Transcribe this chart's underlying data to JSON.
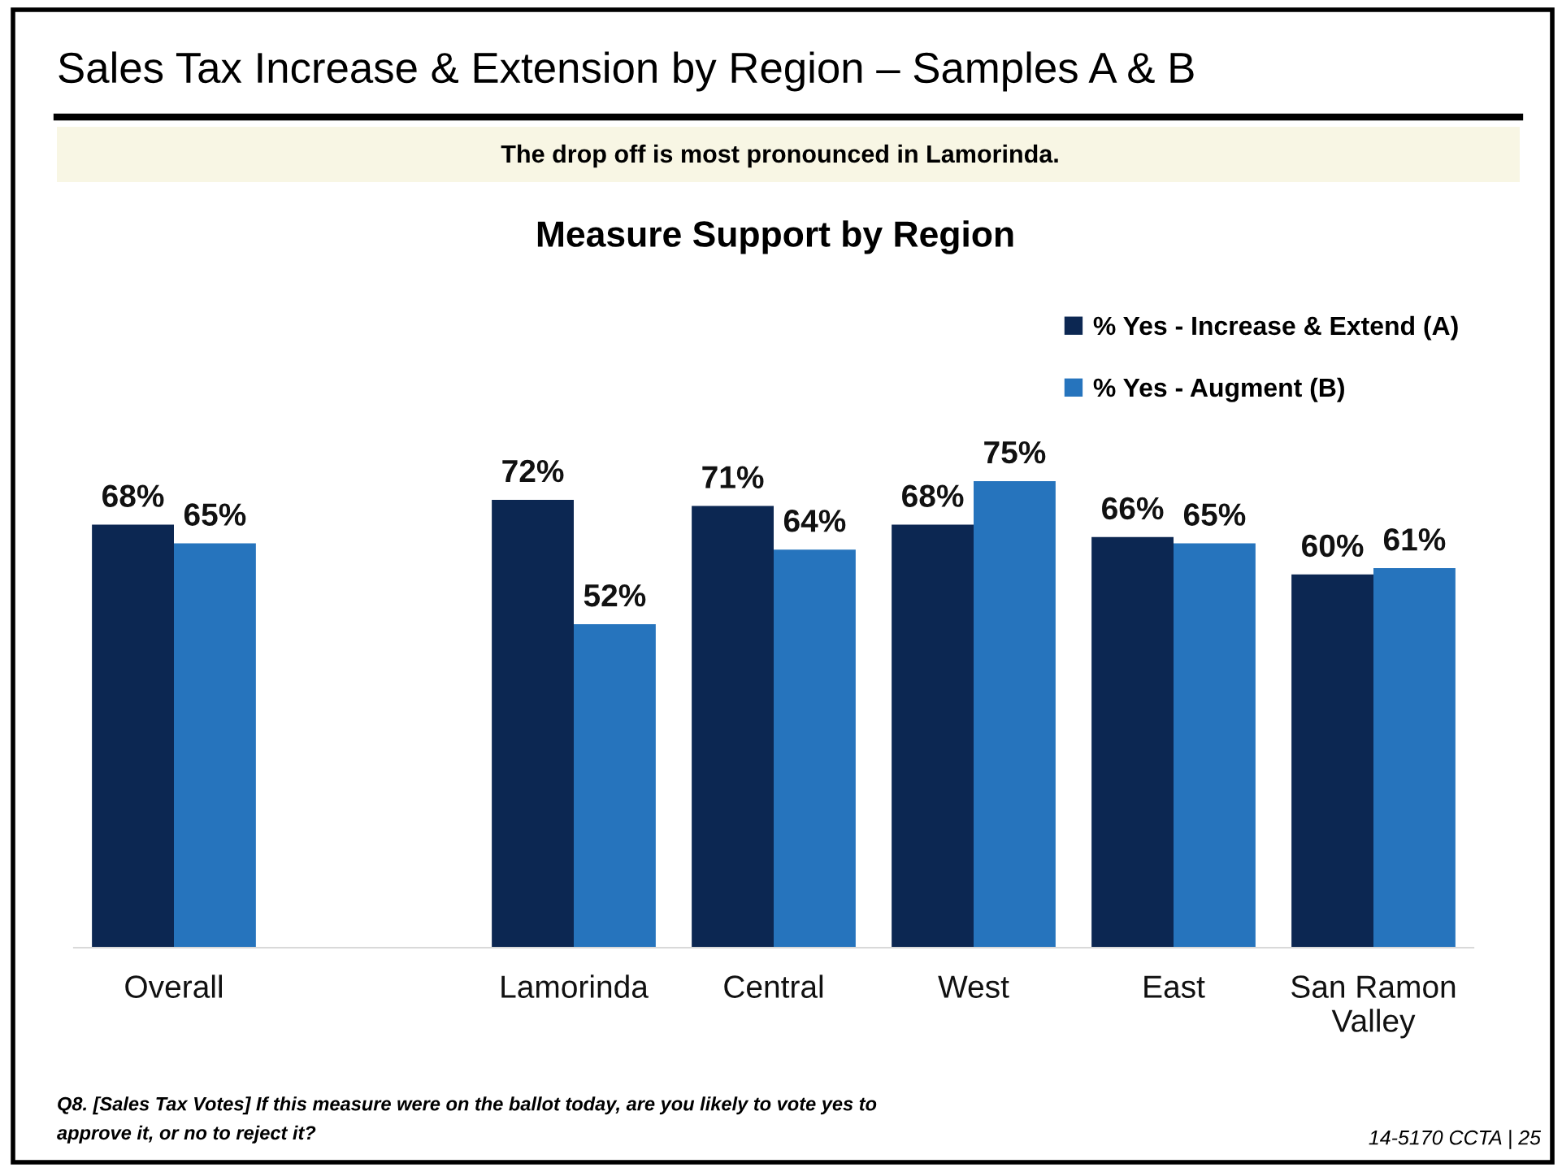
{
  "chart_data": {
    "type": "bar",
    "title": "Sales Tax Increase & Extension by Region – Samples A & B",
    "subtitle": "The drop off is most pronounced in Lamorinda.",
    "categories": [
      "Overall",
      null,
      "Lamorinda",
      "Central",
      "West",
      "East",
      "San Ramon\nValley"
    ],
    "series": [
      {
        "name": "% Yes - Increase & Extend (A)",
        "color": "#0c2752",
        "values": [
          68,
          null,
          72,
          71,
          68,
          66,
          60
        ],
        "value_labels": [
          "68%",
          null,
          "72%",
          "71%",
          "68%",
          "66%",
          "60%"
        ]
      },
      {
        "name": "% Yes - Augment (B)",
        "color": "#2674bd",
        "values": [
          65,
          null,
          52,
          64,
          75,
          65,
          61
        ],
        "value_labels": [
          "65%",
          null,
          "52%",
          "64%",
          "75%",
          "65%",
          "61%"
        ]
      }
    ],
    "legend": "top right",
    "tick_labels": "x",
    "annotations": [
      "Measure Support by Region",
      "Q8. [Sales Tax Votes] If this measure were on the ballot today, are you likely to vote yes to\napprove it, or no to reject it?",
      "14-5170 CCTA | 25"
    ]
  }
}
